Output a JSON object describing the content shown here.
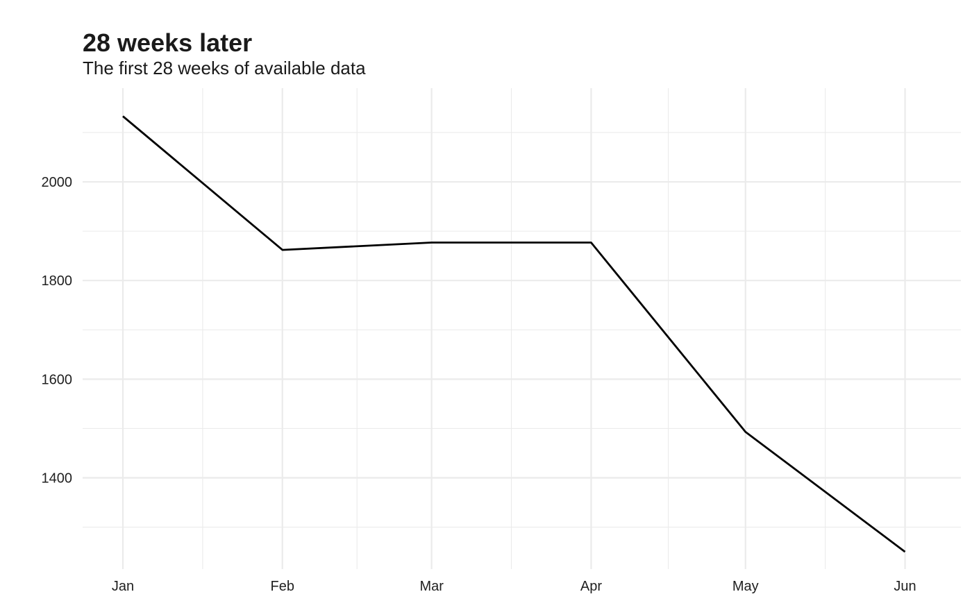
{
  "chart_data": {
    "type": "line",
    "title": "28 weeks later",
    "subtitle": "The first 28 weeks of available data",
    "xlabel": "",
    "ylabel": "",
    "x_axis": {
      "type": "date",
      "range": [
        "2020-01-01",
        "2020-06-07"
      ],
      "ticks": [
        {
          "date": "2020-01-01",
          "label": "Jan"
        },
        {
          "date": "2020-02-01",
          "label": "Feb"
        },
        {
          "date": "2020-03-01",
          "label": "Mar"
        },
        {
          "date": "2020-04-01",
          "label": "Apr"
        },
        {
          "date": "2020-05-01",
          "label": "May"
        },
        {
          "date": "2020-06-01",
          "label": "Jun"
        }
      ]
    },
    "y_axis": {
      "range": [
        1215,
        2190
      ],
      "ticks": [
        1400,
        1600,
        1800,
        2000
      ],
      "minor_ticks": [
        1300,
        1500,
        1700,
        1900,
        2100
      ]
    },
    "grid": true,
    "legend": "none",
    "line_color": "#000000",
    "grid_color": "#ebebeb",
    "series": [
      {
        "points": [
          {
            "x": "2020-01-01",
            "y": 2133
          },
          {
            "x": "2020-02-01",
            "y": 1862
          },
          {
            "x": "2020-03-01",
            "y": 1877
          },
          {
            "x": "2020-04-01",
            "y": 1877
          },
          {
            "x": "2020-05-01",
            "y": 1493
          },
          {
            "x": "2020-06-01",
            "y": 1250
          }
        ]
      }
    ]
  }
}
